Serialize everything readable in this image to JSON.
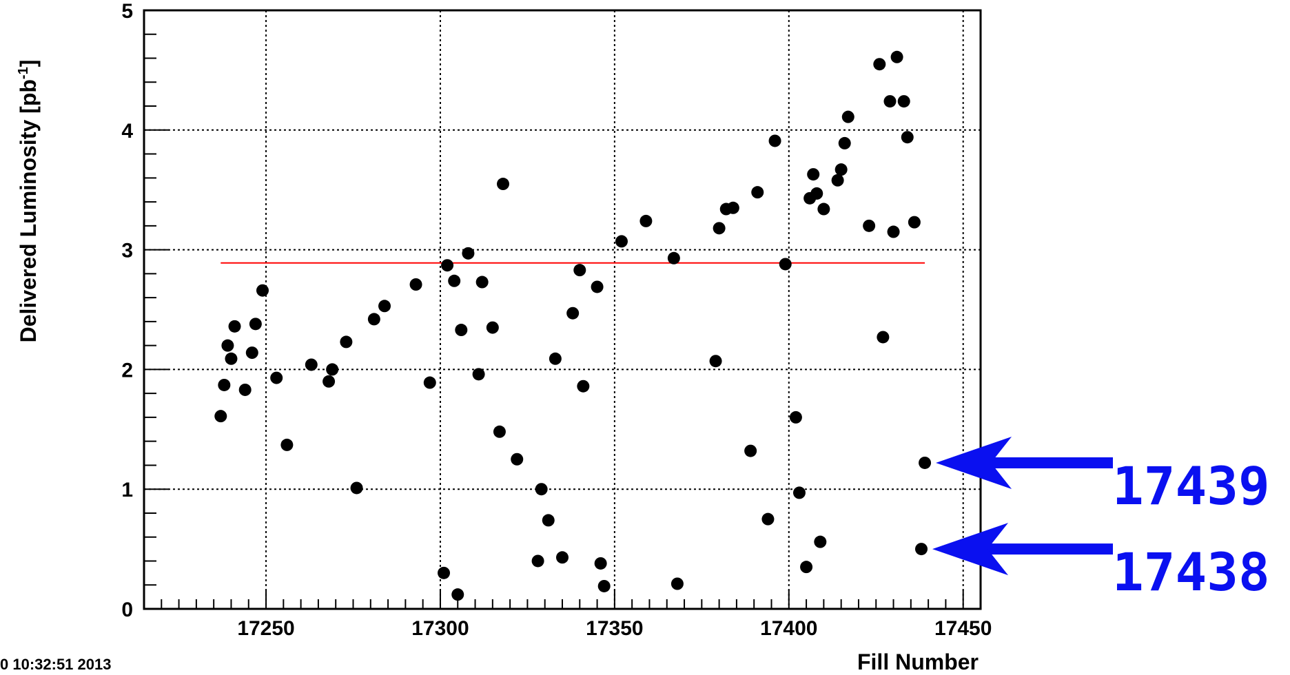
{
  "chart_data": {
    "type": "scatter",
    "title": "",
    "xlabel": "Fill Number",
    "ylabel": "Delivered Luminosity [pb",
    "ylabel_superscript": "-1",
    "ylabel_close": "]",
    "xlim": [
      17215,
      17455
    ],
    "ylim": [
      0,
      5
    ],
    "x_major_ticks": [
      17250,
      17300,
      17350,
      17400,
      17450
    ],
    "x_tick_labels": [
      "17250",
      "17300",
      "17350",
      "17400",
      "17450"
    ],
    "y_major_ticks": [
      0,
      1,
      2,
      3,
      4,
      5
    ],
    "y_tick_labels": [
      "0",
      "1",
      "2",
      "3",
      "4",
      "5"
    ],
    "grid": true,
    "legend": "none",
    "colors": {
      "points": "#000000",
      "mean_line": "#ff0000",
      "annotation": "#0a10f0",
      "grid": "#000000"
    },
    "mean_line": {
      "x": [
        17237,
        17439
      ],
      "y": 2.89
    },
    "timestamp": "0 10:32:51 2013",
    "points": [
      {
        "x": 17237,
        "y": 1.61
      },
      {
        "x": 17238,
        "y": 1.87
      },
      {
        "x": 17239,
        "y": 2.2
      },
      {
        "x": 17240,
        "y": 2.09
      },
      {
        "x": 17241,
        "y": 2.36
      },
      {
        "x": 17244,
        "y": 1.83
      },
      {
        "x": 17246,
        "y": 2.14
      },
      {
        "x": 17247,
        "y": 2.38
      },
      {
        "x": 17249,
        "y": 2.66
      },
      {
        "x": 17253,
        "y": 1.93
      },
      {
        "x": 17256,
        "y": 1.37
      },
      {
        "x": 17263,
        "y": 2.04
      },
      {
        "x": 17268,
        "y": 1.9
      },
      {
        "x": 17269,
        "y": 2.0
      },
      {
        "x": 17273,
        "y": 2.23
      },
      {
        "x": 17276,
        "y": 1.01
      },
      {
        "x": 17281,
        "y": 2.42
      },
      {
        "x": 17284,
        "y": 2.53
      },
      {
        "x": 17293,
        "y": 2.71
      },
      {
        "x": 17297,
        "y": 1.89
      },
      {
        "x": 17301,
        "y": 0.3
      },
      {
        "x": 17302,
        "y": 2.87
      },
      {
        "x": 17304,
        "y": 2.74
      },
      {
        "x": 17305,
        "y": 0.12
      },
      {
        "x": 17306,
        "y": 2.33
      },
      {
        "x": 17308,
        "y": 2.97
      },
      {
        "x": 17311,
        "y": 1.96
      },
      {
        "x": 17312,
        "y": 2.73
      },
      {
        "x": 17315,
        "y": 2.35
      },
      {
        "x": 17317,
        "y": 1.48
      },
      {
        "x": 17318,
        "y": 3.55
      },
      {
        "x": 17322,
        "y": 1.25
      },
      {
        "x": 17328,
        "y": 0.4
      },
      {
        "x": 17329,
        "y": 1.0
      },
      {
        "x": 17331,
        "y": 0.74
      },
      {
        "x": 17333,
        "y": 2.09
      },
      {
        "x": 17335,
        "y": 0.43
      },
      {
        "x": 17338,
        "y": 2.47
      },
      {
        "x": 17340,
        "y": 2.83
      },
      {
        "x": 17341,
        "y": 1.86
      },
      {
        "x": 17345,
        "y": 2.69
      },
      {
        "x": 17346,
        "y": 0.38
      },
      {
        "x": 17347,
        "y": 0.19
      },
      {
        "x": 17352,
        "y": 3.07
      },
      {
        "x": 17359,
        "y": 3.24
      },
      {
        "x": 17367,
        "y": 2.93
      },
      {
        "x": 17368,
        "y": 0.21
      },
      {
        "x": 17379,
        "y": 2.07
      },
      {
        "x": 17380,
        "y": 3.18
      },
      {
        "x": 17382,
        "y": 3.34
      },
      {
        "x": 17384,
        "y": 3.35
      },
      {
        "x": 17389,
        "y": 1.32
      },
      {
        "x": 17391,
        "y": 3.48
      },
      {
        "x": 17394,
        "y": 0.75
      },
      {
        "x": 17396,
        "y": 3.91
      },
      {
        "x": 17399,
        "y": 2.88
      },
      {
        "x": 17402,
        "y": 1.6
      },
      {
        "x": 17403,
        "y": 0.97
      },
      {
        "x": 17405,
        "y": 0.35
      },
      {
        "x": 17406,
        "y": 3.43
      },
      {
        "x": 17407,
        "y": 3.63
      },
      {
        "x": 17408,
        "y": 3.47
      },
      {
        "x": 17409,
        "y": 0.56
      },
      {
        "x": 17410,
        "y": 3.34
      },
      {
        "x": 17414,
        "y": 3.58
      },
      {
        "x": 17415,
        "y": 3.67
      },
      {
        "x": 17416,
        "y": 3.89
      },
      {
        "x": 17417,
        "y": 4.11
      },
      {
        "x": 17423,
        "y": 3.2
      },
      {
        "x": 17426,
        "y": 4.55
      },
      {
        "x": 17427,
        "y": 2.27
      },
      {
        "x": 17429,
        "y": 4.24
      },
      {
        "x": 17430,
        "y": 3.15
      },
      {
        "x": 17431,
        "y": 4.61
      },
      {
        "x": 17433,
        "y": 4.24
      },
      {
        "x": 17434,
        "y": 3.94
      },
      {
        "x": 17436,
        "y": 3.23
      },
      {
        "x": 17438,
        "y": 0.5
      },
      {
        "x": 17439,
        "y": 1.22
      }
    ],
    "annotations": [
      {
        "label": "17439",
        "x": 17439,
        "y": 1.22
      },
      {
        "label": "17438",
        "x": 17438,
        "y": 0.5
      }
    ]
  }
}
